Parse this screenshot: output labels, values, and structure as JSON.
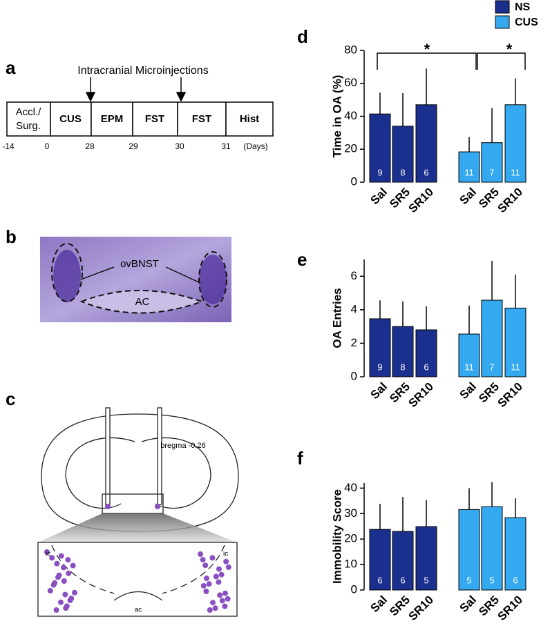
{
  "panels": {
    "a": {
      "letter": "a",
      "title": "Intracranial Microinjections",
      "boxes": [
        "Accl./",
        "Surg.",
        "CUS",
        "EPM",
        "FST",
        "FST",
        "Hist"
      ],
      "days": [
        "-14",
        "0",
        "28",
        "29",
        "30",
        "31",
        "(Days)"
      ]
    },
    "b": {
      "letter": "b",
      "labels": [
        "ovBNST",
        "AC"
      ]
    },
    "c": {
      "letter": "c",
      "labels": [
        "bregma -0.26",
        "ic",
        "ic",
        "ac"
      ]
    },
    "d": {
      "letter": "d"
    },
    "e": {
      "letter": "e"
    },
    "f": {
      "letter": "f"
    }
  },
  "chart_data": [
    {
      "type": "bar",
      "y_label": "Time in OA (%)",
      "categories": [
        "Sal",
        "SR5",
        "SR10"
      ],
      "ylim": [
        0,
        80
      ],
      "yticks": [
        0,
        20,
        40,
        60,
        80
      ],
      "significance": [
        "*",
        "*"
      ],
      "series": [
        {
          "name": "NS",
          "color": "#1b2f8e",
          "values": [
            41.4,
            34,
            47
          ],
          "errors": [
            13,
            20,
            22
          ],
          "n": [
            9,
            8,
            6
          ]
        },
        {
          "name": "CUS",
          "color": "#35a9ef",
          "values": [
            18.4,
            24,
            47
          ],
          "errors": [
            9,
            21,
            16
          ],
          "n": [
            11,
            7,
            11
          ]
        }
      ]
    },
    {
      "type": "bar",
      "y_label": "OA Entries",
      "categories": [
        "Sal",
        "SR5",
        "SR10"
      ],
      "ylim": [
        0,
        7
      ],
      "yticks": [
        0,
        2,
        4,
        6
      ],
      "series": [
        {
          "color": "#1b2f8e",
          "values": [
            3.46,
            3.0,
            2.8
          ],
          "errors": [
            1.1,
            1.5,
            1.4
          ],
          "n": [
            9,
            8,
            6
          ]
        },
        {
          "color": "#35a9ef",
          "values": [
            2.55,
            4.57,
            4.1
          ],
          "errors": [
            1.7,
            2.35,
            2.0
          ],
          "n": [
            11,
            7,
            11
          ]
        }
      ]
    },
    {
      "type": "bar",
      "y_label": "Immobility Score",
      "categories": [
        "Sal",
        "SR5",
        "SR10"
      ],
      "ylim": [
        0,
        42
      ],
      "yticks": [
        0,
        10,
        20,
        30,
        40
      ],
      "series": [
        {
          "color": "#1b2f8e",
          "values": [
            23.8,
            23,
            24.9
          ],
          "errors": [
            10,
            13.5,
            10.5
          ],
          "n": [
            6,
            6,
            5
          ]
        },
        {
          "color": "#35a9ef",
          "values": [
            31.6,
            32.7,
            28.4
          ],
          "errors": [
            8.4,
            9.7,
            7.6
          ],
          "n": [
            5,
            5,
            6
          ]
        }
      ]
    }
  ]
}
